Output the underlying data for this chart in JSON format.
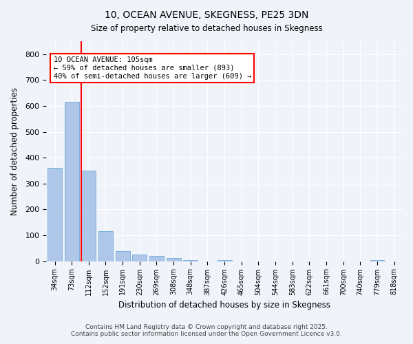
{
  "title_line1": "10, OCEAN AVENUE, SKEGNESS, PE25 3DN",
  "title_line2": "Size of property relative to detached houses in Skegness",
  "xlabel": "Distribution of detached houses by size in Skegness",
  "ylabel": "Number of detached properties",
  "categories": [
    "34sqm",
    "73sqm",
    "112sqm",
    "152sqm",
    "191sqm",
    "230sqm",
    "269sqm",
    "308sqm",
    "348sqm",
    "387sqm",
    "426sqm",
    "465sqm",
    "504sqm",
    "544sqm",
    "583sqm",
    "622sqm",
    "661sqm",
    "700sqm",
    "740sqm",
    "779sqm",
    "818sqm"
  ],
  "values": [
    360,
    615,
    350,
    115,
    40,
    25,
    20,
    12,
    5,
    0,
    4,
    0,
    0,
    0,
    0,
    0,
    0,
    0,
    0,
    5,
    0
  ],
  "bar_color": "#aec6e8",
  "bar_edge_color": "#5a9fd4",
  "vline_x": 2,
  "vline_color": "red",
  "annotation_text": "10 OCEAN AVENUE: 105sqm\n← 59% of detached houses are smaller (893)\n40% of semi-detached houses are larger (609) →",
  "annotation_box_color": "white",
  "annotation_box_edge": "red",
  "ylim": [
    0,
    850
  ],
  "yticks": [
    0,
    100,
    200,
    300,
    400,
    500,
    600,
    700,
    800
  ],
  "footer_line1": "Contains HM Land Registry data © Crown copyright and database right 2025.",
  "footer_line2": "Contains public sector information licensed under the Open Government Licence v3.0.",
  "background_color": "#f0f4fa",
  "plot_background": "#f0f4fa",
  "grid_color": "white"
}
